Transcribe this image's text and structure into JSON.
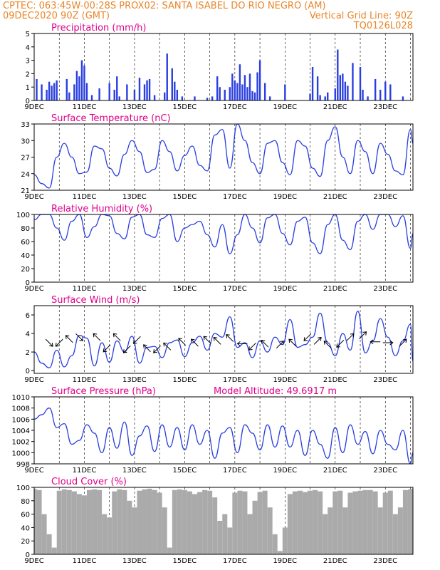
{
  "header": {
    "left1": "CPTEC:  063:45W-00:28S  PROX02: SANTA ISABEL DO RIO NEGRO (AM)",
    "left2": "09DEC2020 90Z (GMT)",
    "right2": "Vertical Grid Line: 90Z",
    "right3": "TQ0126L028"
  },
  "chart_data": [
    {
      "type": "bar",
      "title": "Precipitation (mm/h)",
      "x_labels": [
        "9DEC",
        "11DEC",
        "13DEC",
        "15DEC",
        "17DEC",
        "19DEC",
        "21DEC",
        "23DEC"
      ],
      "x_range_days": [
        9,
        24.1
      ],
      "ylim": [
        0,
        5
      ],
      "yticks": [
        0,
        1,
        2,
        3,
        4,
        5
      ],
      "color": "#2a3fe0",
      "x": [
        9.1,
        9.3,
        9.5,
        9.6,
        9.7,
        9.8,
        9.9,
        10.3,
        10.4,
        10.6,
        10.7,
        10.8,
        10.9,
        11.0,
        11.1,
        11.3,
        11.6,
        12.0,
        12.2,
        12.3,
        12.4,
        12.7,
        13.0,
        13.2,
        13.4,
        13.5,
        13.6,
        13.8,
        14.2,
        14.3,
        14.5,
        14.6,
        14.7,
        14.9,
        15.4,
        15.9,
        16.1,
        16.3,
        16.4,
        16.6,
        16.8,
        16.9,
        17.0,
        17.1,
        17.2,
        17.3,
        17.4,
        17.5,
        17.6,
        17.7,
        17.8,
        17.9,
        18.0,
        18.2,
        18.4,
        19.0,
        20.0,
        20.1,
        20.3,
        20.4,
        20.6,
        20.7,
        21.0,
        21.1,
        21.2,
        21.3,
        21.4,
        21.5,
        21.7,
        22.0,
        22.1,
        22.3,
        22.6,
        22.8,
        23.0,
        23.2,
        23.7
      ],
      "values": [
        1.6,
        1.2,
        0.8,
        1.4,
        1.1,
        1.3,
        1.5,
        1.6,
        0.6,
        1.2,
        2.2,
        1.8,
        3.0,
        2.6,
        1.3,
        0.4,
        0.9,
        1.3,
        0.8,
        1.8,
        0.3,
        1.2,
        0.8,
        1.7,
        1.2,
        1.5,
        1.6,
        0.4,
        0.6,
        3.5,
        2.4,
        1.4,
        0.8,
        0.3,
        0.3,
        0.2,
        0.3,
        1.8,
        1.0,
        0.8,
        1.0,
        2.0,
        1.5,
        1.3,
        2.7,
        1.2,
        1.9,
        1.0,
        2.0,
        0.7,
        0.6,
        2.1,
        3.0,
        1.3,
        0.3,
        1.2,
        0.5,
        2.5,
        1.8,
        0.4,
        0.3,
        0.6,
        0.9,
        3.8,
        1.9,
        2.0,
        1.4,
        1.1,
        2.8,
        2.5,
        0.8,
        0.3,
        1.6,
        0.8,
        1.4,
        1.2,
        0.3
      ]
    },
    {
      "type": "line",
      "title": "Surface Temperature (nC)",
      "x_labels": [
        "9DEC",
        "11DEC",
        "13DEC",
        "15DEC",
        "17DEC",
        "19DEC",
        "21DEC",
        "23DEC"
      ],
      "x_range_days": [
        9,
        24.1
      ],
      "ylim": [
        21,
        33
      ],
      "yticks": [
        21,
        24,
        27,
        30,
        33
      ],
      "color": "#2a3fe0",
      "x": [
        9.0,
        9.3,
        9.6,
        9.9,
        10.2,
        10.5,
        10.8,
        11.1,
        11.4,
        11.7,
        12.0,
        12.3,
        12.6,
        12.9,
        13.2,
        13.5,
        13.8,
        14.1,
        14.4,
        14.7,
        15.0,
        15.3,
        15.6,
        15.9,
        16.2,
        16.5,
        16.8,
        17.1,
        17.4,
        17.7,
        18.0,
        18.3,
        18.6,
        18.9,
        19.2,
        19.5,
        19.8,
        20.1,
        20.4,
        20.7,
        21.0,
        21.3,
        21.6,
        21.9,
        22.2,
        22.5,
        22.8,
        23.1,
        23.4,
        23.7,
        24.0,
        24.1
      ],
      "values": [
        23.8,
        22.2,
        21.4,
        27.0,
        29.5,
        27.0,
        24.0,
        24.3,
        29.0,
        28.5,
        25.0,
        23.6,
        27.5,
        30.0,
        28.0,
        24.2,
        24.8,
        30.0,
        28.0,
        24.5,
        27.3,
        29.0,
        25.5,
        24.5,
        31.0,
        32.0,
        25.0,
        33.0,
        30.0,
        26.0,
        24.0,
        29.5,
        30.0,
        26.0,
        23.8,
        30.0,
        29.0,
        25.0,
        23.5,
        30.0,
        32.5,
        27.0,
        24.0,
        30.0,
        28.0,
        24.0,
        29.5,
        27.5,
        24.5,
        23.8,
        32.0,
        29.5
      ]
    },
    {
      "type": "line",
      "title": "Relative Humidity (%)",
      "x_labels": [
        "9DEC",
        "11DEC",
        "13DEC",
        "15DEC",
        "17DEC",
        "19DEC",
        "21DEC",
        "23DEC"
      ],
      "x_range_days": [
        9,
        24.1
      ],
      "ylim": [
        0,
        100
      ],
      "yticks": [
        0,
        20,
        40,
        60,
        80,
        100
      ],
      "color": "#2a3fe0",
      "x": [
        9.0,
        9.3,
        9.6,
        9.9,
        10.2,
        10.5,
        10.8,
        11.1,
        11.4,
        11.7,
        12.0,
        12.3,
        12.6,
        12.9,
        13.2,
        13.5,
        13.8,
        14.1,
        14.4,
        14.7,
        15.0,
        15.3,
        15.6,
        15.9,
        16.2,
        16.5,
        16.8,
        17.1,
        17.4,
        17.7,
        18.0,
        18.3,
        18.6,
        18.9,
        19.2,
        19.5,
        19.8,
        20.1,
        20.4,
        20.7,
        21.0,
        21.3,
        21.6,
        21.9,
        22.2,
        22.5,
        22.8,
        23.1,
        23.4,
        23.7,
        24.0,
        24.1
      ],
      "values": [
        92,
        100,
        100,
        80,
        62,
        90,
        100,
        66,
        82,
        100,
        98,
        72,
        64,
        96,
        100,
        70,
        66,
        94,
        100,
        60,
        80,
        85,
        90,
        70,
        52,
        85,
        42,
        70,
        100,
        80,
        58,
        95,
        100,
        72,
        55,
        90,
        96,
        58,
        42,
        85,
        100,
        62,
        48,
        90,
        100,
        78,
        100,
        100,
        82,
        98,
        50,
        72
      ]
    },
    {
      "type": "line",
      "title": "Surface Wind (m/s)",
      "x_labels": [
        "9DEC",
        "11DEC",
        "13DEC",
        "15DEC",
        "17DEC",
        "19DEC",
        "21DEC",
        "23DEC"
      ],
      "x_range_days": [
        9,
        24.1
      ],
      "ylim": [
        -0.3,
        7
      ],
      "yticks": [
        0,
        2,
        4,
        6
      ],
      "color": "#2a3fe0",
      "x": [
        9.0,
        9.3,
        9.6,
        9.9,
        10.2,
        10.5,
        10.8,
        11.1,
        11.4,
        11.7,
        12.0,
        12.3,
        12.6,
        12.9,
        13.2,
        13.5,
        13.8,
        14.1,
        14.4,
        14.7,
        15.0,
        15.3,
        15.6,
        15.9,
        16.2,
        16.5,
        16.8,
        17.1,
        17.4,
        17.7,
        18.0,
        18.3,
        18.6,
        18.9,
        19.2,
        19.5,
        19.8,
        20.1,
        20.4,
        20.7,
        21.0,
        21.3,
        21.6,
        21.9,
        22.2,
        22.5,
        22.8,
        23.1,
        23.4,
        23.7,
        24.0,
        24.1
      ],
      "values": [
        2.0,
        0.8,
        0.3,
        2.2,
        0.4,
        1.6,
        3.8,
        3.5,
        0.5,
        3.0,
        0.9,
        3.2,
        2.0,
        3.7,
        0.8,
        2.5,
        2.6,
        1.4,
        3.0,
        3.3,
        1.5,
        3.0,
        3.7,
        2.2,
        4.0,
        3.6,
        5.8,
        2.5,
        3.0,
        1.4,
        3.2,
        2.0,
        3.6,
        2.8,
        5.5,
        2.5,
        2.8,
        3.6,
        6.2,
        3.0,
        1.6,
        4.0,
        2.2,
        6.4,
        1.9,
        3.2,
        5.6,
        3.6,
        1.6,
        3.2,
        5.0,
        1.0
      ],
      "arrows": [
        {
          "x": 9.6,
          "y": 3.0,
          "dx": 1,
          "dy": -1
        },
        {
          "x": 10.0,
          "y": 3.0,
          "dx": -1,
          "dy": -1
        },
        {
          "x": 10.4,
          "y": 3.4,
          "dx": -1,
          "dy": 1
        },
        {
          "x": 10.8,
          "y": 3.6,
          "dx": 1,
          "dy": -1
        },
        {
          "x": 11.5,
          "y": 3.6,
          "dx": -1,
          "dy": 1
        },
        {
          "x": 11.9,
          "y": 2.4,
          "dx": -1,
          "dy": -1
        },
        {
          "x": 12.3,
          "y": 3.6,
          "dx": -1,
          "dy": 1
        },
        {
          "x": 12.7,
          "y": 2.3,
          "dx": -1,
          "dy": -1
        },
        {
          "x": 13.1,
          "y": 3.3,
          "dx": -1,
          "dy": -1
        },
        {
          "x": 13.5,
          "y": 2.4,
          "dx": -1,
          "dy": 1
        },
        {
          "x": 13.9,
          "y": 2.3,
          "dx": -1,
          "dy": -1
        },
        {
          "x": 14.3,
          "y": 2.6,
          "dx": -1,
          "dy": 1
        },
        {
          "x": 14.9,
          "y": 3.1,
          "dx": -1,
          "dy": 1
        },
        {
          "x": 15.4,
          "y": 3.0,
          "dx": -1,
          "dy": 1
        },
        {
          "x": 15.9,
          "y": 3.3,
          "dx": -1,
          "dy": 1
        },
        {
          "x": 16.3,
          "y": 3.2,
          "dx": -1,
          "dy": 1
        },
        {
          "x": 16.8,
          "y": 3.5,
          "dx": -1,
          "dy": 1
        },
        {
          "x": 17.3,
          "y": 2.9,
          "dx": -1,
          "dy": 0
        },
        {
          "x": 17.7,
          "y": 2.6,
          "dx": -1,
          "dy": -1
        },
        {
          "x": 18.2,
          "y": 2.9,
          "dx": -1,
          "dy": 1
        },
        {
          "x": 18.8,
          "y": 2.8,
          "dx": 1,
          "dy": 1
        },
        {
          "x": 19.3,
          "y": 3.0,
          "dx": -1,
          "dy": 1
        },
        {
          "x": 19.9,
          "y": 3.6,
          "dx": -1,
          "dy": -1
        },
        {
          "x": 20.3,
          "y": 3.2,
          "dx": 1,
          "dy": 1
        },
        {
          "x": 20.7,
          "y": 2.8,
          "dx": -1,
          "dy": 1
        },
        {
          "x": 21.2,
          "y": 2.9,
          "dx": -1,
          "dy": -1
        },
        {
          "x": 21.6,
          "y": 3.6,
          "dx": 1,
          "dy": 1
        },
        {
          "x": 22.1,
          "y": 3.8,
          "dx": 1,
          "dy": 1
        },
        {
          "x": 22.6,
          "y": 3.1,
          "dx": -1,
          "dy": 0
        },
        {
          "x": 23.1,
          "y": 3.0,
          "dx": 1,
          "dy": 0
        },
        {
          "x": 23.7,
          "y": 3.0,
          "dx": 1,
          "dy": 1
        }
      ]
    },
    {
      "type": "line",
      "title": "Surface Pressure (hPa)",
      "annotation": "Model Altitude: 49.6917 m",
      "x_labels": [
        "9DEC",
        "11DEC",
        "13DEC",
        "15DEC",
        "17DEC",
        "19DEC",
        "21DEC",
        "23DEC"
      ],
      "x_range_days": [
        9,
        24.1
      ],
      "ylim": [
        998,
        1010
      ],
      "yticks": [
        998,
        1000,
        1002,
        1004,
        1006,
        1008,
        1010
      ],
      "color": "#2a3fe0",
      "x": [
        9.0,
        9.3,
        9.6,
        9.9,
        10.2,
        10.5,
        10.8,
        11.1,
        11.4,
        11.7,
        12.0,
        12.3,
        12.6,
        12.9,
        13.2,
        13.5,
        13.8,
        14.1,
        14.4,
        14.7,
        15.0,
        15.3,
        15.6,
        15.9,
        16.2,
        16.5,
        16.8,
        17.1,
        17.4,
        17.7,
        18.0,
        18.3,
        18.6,
        18.9,
        19.2,
        19.5,
        19.8,
        20.1,
        20.4,
        20.7,
        21.0,
        21.3,
        21.6,
        21.9,
        22.2,
        22.5,
        22.8,
        23.1,
        23.4,
        23.7,
        24.0,
        24.1
      ],
      "values": [
        1006.0,
        1006.8,
        1008.0,
        1004.5,
        1005.2,
        1001.5,
        1002.2,
        1005.0,
        1003.5,
        1000.0,
        1004.5,
        1000.8,
        1005.5,
        999.5,
        1003.0,
        1004.8,
        1000.2,
        1005.0,
        1001.0,
        1004.5,
        1000.5,
        1005.0,
        1001.5,
        1004.0,
        999.0,
        1003.5,
        1004.5,
        1000.0,
        1005.0,
        1003.5,
        1000.5,
        1005.0,
        1001.0,
        1004.8,
        1001.0,
        1004.0,
        999.5,
        1004.0,
        1001.5,
        999.0,
        1004.5,
        1000.0,
        1005.0,
        1001.5,
        1003.8,
        999.8,
        1004.0,
        1001.5,
        1000.5,
        1004.0,
        998.0,
        1000.0
      ]
    },
    {
      "type": "area",
      "title": "Cloud Cover (%)",
      "x_labels": [
        "9DEC",
        "11DEC",
        "13DEC",
        "15DEC",
        "17DEC",
        "19DEC",
        "21DEC",
        "23DEC"
      ],
      "x_range_days": [
        9,
        24.1
      ],
      "ylim": [
        0,
        100
      ],
      "yticks": [
        0,
        20,
        40,
        60,
        80,
        100
      ],
      "color": "#aaaaaa",
      "x": [
        9.0,
        9.2,
        9.4,
        9.6,
        9.8,
        10.0,
        10.2,
        10.4,
        10.6,
        10.8,
        11.0,
        11.2,
        11.4,
        11.6,
        11.8,
        12.0,
        12.2,
        12.4,
        12.6,
        12.8,
        13.0,
        13.2,
        13.4,
        13.6,
        13.8,
        14.0,
        14.2,
        14.4,
        14.6,
        14.8,
        15.0,
        15.2,
        15.4,
        15.6,
        15.8,
        16.0,
        16.2,
        16.4,
        16.6,
        16.8,
        17.0,
        17.2,
        17.4,
        17.6,
        17.8,
        18.0,
        18.2,
        18.4,
        18.6,
        18.8,
        19.0,
        19.2,
        19.4,
        19.6,
        19.8,
        20.0,
        20.2,
        20.4,
        20.6,
        20.8,
        21.0,
        21.2,
        21.4,
        21.6,
        21.8,
        22.0,
        22.2,
        22.4,
        22.6,
        22.8,
        23.0,
        23.2,
        23.4,
        23.6,
        23.8,
        24.0,
        24.1
      ],
      "values": [
        98,
        96,
        60,
        30,
        10,
        95,
        97,
        96,
        94,
        90,
        88,
        96,
        97,
        96,
        60,
        55,
        94,
        97,
        96,
        80,
        70,
        95,
        97,
        98,
        96,
        92,
        70,
        10,
        96,
        97,
        96,
        94,
        90,
        93,
        96,
        95,
        85,
        50,
        60,
        40,
        92,
        95,
        94,
        60,
        80,
        93,
        95,
        70,
        30,
        5,
        40,
        90,
        94,
        95,
        93,
        95,
        96,
        94,
        60,
        70,
        94,
        95,
        70,
        92,
        94,
        95,
        96,
        96,
        94,
        70,
        92,
        95,
        60,
        70,
        96,
        97,
        98
      ]
    }
  ]
}
